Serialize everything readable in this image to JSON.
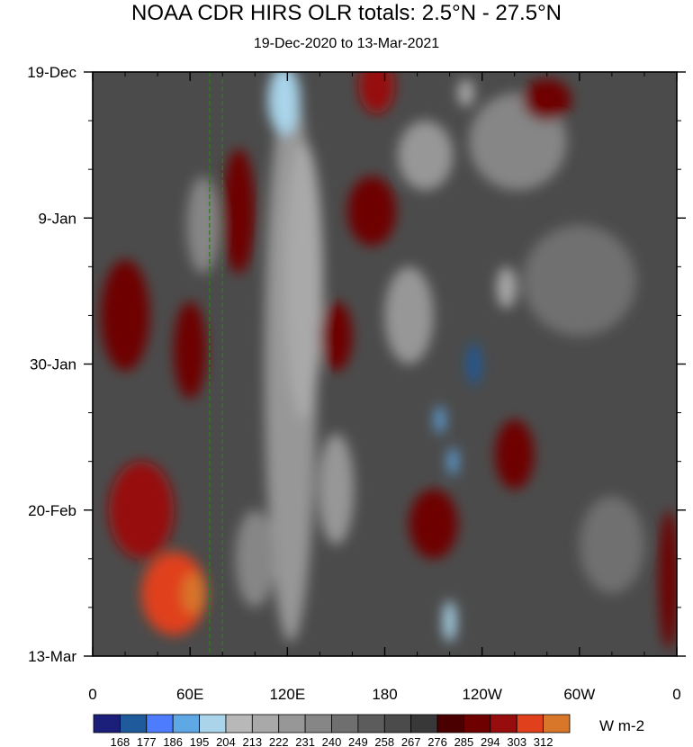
{
  "chart_data": {
    "type": "heatmap",
    "title": "NOAA CDR HIRS OLR totals: 2.5°N - 27.5°N",
    "subtitle": "19-Dec-2020 to 13-Mar-2021",
    "x_tick_labels": [
      "0",
      "60E",
      "120E",
      "180",
      "120W",
      "60W",
      "0"
    ],
    "x_ticks_deg": [
      0,
      60,
      120,
      180,
      240,
      300,
      360
    ],
    "xlim": [
      0,
      360
    ],
    "y_tick_labels": [
      "19-Dec",
      "9-Jan",
      "30-Jan",
      "20-Feb",
      "13-Mar"
    ],
    "y_ticks_day": [
      0,
      21,
      42,
      63,
      84
    ],
    "ylim": [
      0,
      84
    ],
    "reference_lines_deg": [
      72,
      80
    ],
    "colorbar": {
      "levels": [
        168,
        177,
        186,
        195,
        204,
        213,
        222,
        231,
        240,
        249,
        258,
        267,
        276,
        285,
        294,
        303,
        312
      ],
      "colors": [
        "#1c1f7a",
        "#1e5a9c",
        "#4e7cff",
        "#5fa8e6",
        "#a9d4ea",
        "#b8b8b8",
        "#a9a9a9",
        "#979797",
        "#868686",
        "#6f6f6f",
        "#5c5c5c",
        "#4b4b4b",
        "#383838",
        "#4a0000",
        "#6e0000",
        "#970c0c",
        "#e0401c",
        "#d8762a"
      ],
      "units": "W m-2"
    },
    "features": [
      {
        "lon": 122,
        "day": 42,
        "w": 32,
        "h": 80,
        "olr": 228
      },
      {
        "lon": 130,
        "day": 30,
        "w": 24,
        "h": 40,
        "olr": 218
      },
      {
        "lon": 118,
        "day": 4,
        "w": 20,
        "h": 10,
        "olr": 200
      },
      {
        "lon": 68,
        "day": 22,
        "w": 20,
        "h": 14,
        "olr": 232
      },
      {
        "lon": 150,
        "day": 60,
        "w": 22,
        "h": 16,
        "olr": 222
      },
      {
        "lon": 195,
        "day": 35,
        "w": 30,
        "h": 14,
        "olr": 222
      },
      {
        "lon": 205,
        "day": 12,
        "w": 34,
        "h": 10,
        "olr": 226
      },
      {
        "lon": 262,
        "day": 10,
        "w": 60,
        "h": 14,
        "olr": 238
      },
      {
        "lon": 300,
        "day": 30,
        "w": 70,
        "h": 16,
        "olr": 244
      },
      {
        "lon": 235,
        "day": 42,
        "w": 8,
        "h": 6,
        "olr": 170
      },
      {
        "lon": 214,
        "day": 50,
        "w": 6,
        "h": 4,
        "olr": 190
      },
      {
        "lon": 222,
        "day": 56,
        "w": 6,
        "h": 4,
        "olr": 186
      },
      {
        "lon": 220,
        "day": 79,
        "w": 8,
        "h": 6,
        "olr": 196
      },
      {
        "lon": 255,
        "day": 31,
        "w": 12,
        "h": 6,
        "olr": 220
      },
      {
        "lon": 230,
        "day": 3,
        "w": 10,
        "h": 4,
        "olr": 214
      },
      {
        "lon": 320,
        "day": 68,
        "w": 40,
        "h": 14,
        "olr": 240
      },
      {
        "lon": 100,
        "day": 70,
        "w": 24,
        "h": 14,
        "olr": 236
      },
      {
        "lon": 50,
        "day": 75,
        "w": 40,
        "h": 12,
        "olr": 310
      },
      {
        "lon": 62,
        "day": 75,
        "w": 14,
        "h": 6,
        "olr": 312
      },
      {
        "lon": 30,
        "day": 63,
        "w": 40,
        "h": 14,
        "olr": 296
      },
      {
        "lon": 20,
        "day": 35,
        "w": 30,
        "h": 16,
        "olr": 290
      },
      {
        "lon": 60,
        "day": 40,
        "w": 20,
        "h": 14,
        "olr": 292
      },
      {
        "lon": 90,
        "day": 20,
        "w": 20,
        "h": 18,
        "olr": 286
      },
      {
        "lon": 172,
        "day": 20,
        "w": 30,
        "h": 10,
        "olr": 288
      },
      {
        "lon": 175,
        "day": 2,
        "w": 22,
        "h": 8,
        "olr": 294
      },
      {
        "lon": 280,
        "day": 4,
        "w": 30,
        "h": 6,
        "olr": 288
      },
      {
        "lon": 260,
        "day": 55,
        "w": 24,
        "h": 10,
        "olr": 288
      },
      {
        "lon": 210,
        "day": 65,
        "w": 30,
        "h": 10,
        "olr": 286
      },
      {
        "lon": 355,
        "day": 73,
        "w": 12,
        "h": 20,
        "olr": 290
      },
      {
        "lon": 150,
        "day": 38,
        "w": 20,
        "h": 10,
        "olr": 286
      }
    ]
  }
}
